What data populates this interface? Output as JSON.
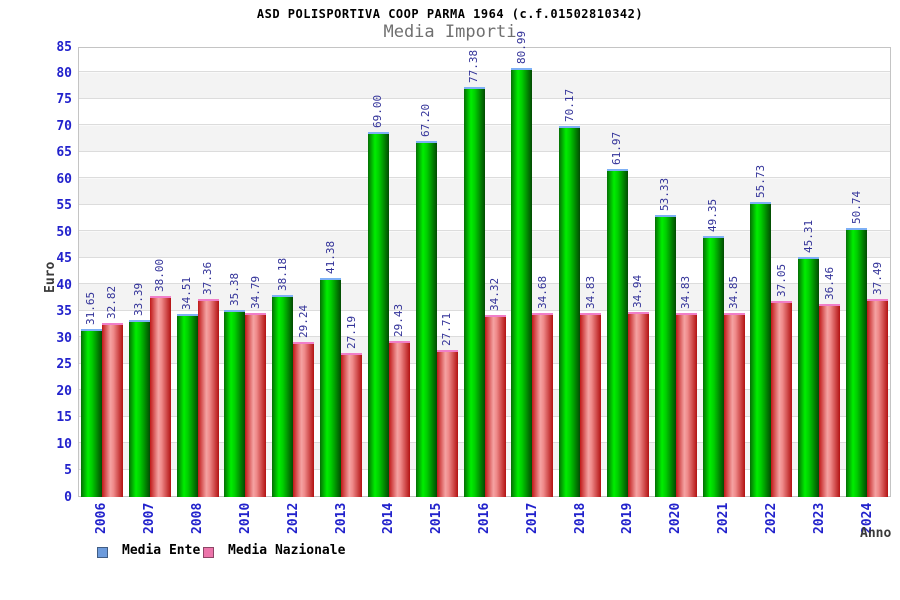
{
  "header": {
    "title": "ASD POLISPORTIVA COOP PARMA 1964 (c.f.01502810342)",
    "subtitle": "Media Importi"
  },
  "chart_data": {
    "type": "bar",
    "title": "ASD POLISPORTIVA COOP PARMA 1964 (c.f.01502810342)",
    "subtitle": "Media Importi",
    "xlabel": "Anno",
    "ylabel": "Euro",
    "ylim": [
      0,
      85
    ],
    "ytick_step": 5,
    "grid": "horizontal alternating bands every 5 units, no vertical gridlines",
    "legend_position": "bottom-left",
    "value_label_style": "rotated 90deg above each bar, two decimals, navy",
    "categories": [
      "2006",
      "2007",
      "2008",
      "2010",
      "2012",
      "2013",
      "2014",
      "2015",
      "2016",
      "2017",
      "2018",
      "2019",
      "2020",
      "2021",
      "2022",
      "2023",
      "2024"
    ],
    "series": [
      {
        "name": "Media Ente",
        "legend_color": "#6d9bdc",
        "bar_style": "green cylinder gradient with light-blue cap",
        "values": [
          31.65,
          33.39,
          34.51,
          35.38,
          38.18,
          41.38,
          69.0,
          67.2,
          77.38,
          80.99,
          70.17,
          61.97,
          53.33,
          49.35,
          55.73,
          45.31,
          50.74
        ]
      },
      {
        "name": "Media Nazionale",
        "legend_color": "#ec74aa",
        "bar_style": "red cylinder gradient with pink cap",
        "values": [
          32.82,
          38.0,
          37.36,
          34.79,
          29.24,
          27.19,
          29.43,
          27.71,
          34.32,
          34.68,
          34.83,
          34.94,
          34.83,
          34.85,
          37.05,
          36.46,
          37.49
        ]
      }
    ]
  },
  "colors": {
    "tick_label": "#2222cc",
    "value_label": "#333399",
    "subtitle": "#707070",
    "plot_border": "#c4c4c4",
    "band_gray": "#f3f3f3",
    "gridline": "#dcdcdc",
    "green_bright": "#00ee00",
    "green_dark": "#024a02",
    "green_cap": "#7db0f5",
    "red_bright": "#f5a3a3",
    "red_dark": "#b31212",
    "red_cap": "#f07ec8"
  }
}
